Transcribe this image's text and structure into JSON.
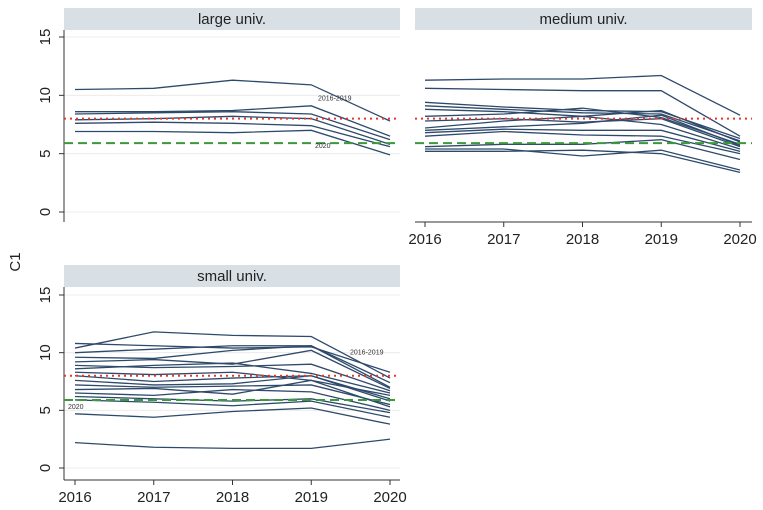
{
  "ylabel": "C1",
  "chart_data": [
    {
      "type": "line",
      "title": "large univ.",
      "color": "#2e4a6b",
      "x": [
        2016,
        2017,
        2018,
        2019,
        2020
      ],
      "xlim": [
        2016,
        2020
      ],
      "ylim": [
        0,
        15
      ],
      "yticks": [
        0,
        5,
        10,
        15
      ],
      "grid": true,
      "series": [
        {
          "values": [
            10.5,
            10.6,
            11.3,
            10.9,
            7.8
          ]
        },
        {
          "values": [
            8.6,
            8.6,
            8.7,
            9.1,
            6.5
          ]
        },
        {
          "values": [
            8.4,
            8.5,
            8.6,
            8.4,
            6.2
          ]
        },
        {
          "values": [
            7.9,
            8.0,
            8.2,
            8.0,
            5.8
          ]
        },
        {
          "values": [
            7.6,
            7.7,
            7.6,
            7.4,
            5.6
          ]
        },
        {
          "values": [
            6.9,
            6.9,
            6.8,
            7.0,
            4.9
          ]
        }
      ],
      "hlines": [
        {
          "value": 8,
          "color": "#e8372c",
          "style": "dotted",
          "label": "2016-2019"
        },
        {
          "value": 5.9,
          "color": "#3a9a3a",
          "style": "dashed",
          "label": "2020"
        }
      ]
    },
    {
      "type": "line",
      "title": "medium univ.",
      "color": "#2e4a6b",
      "x": [
        2016,
        2017,
        2018,
        2019,
        2020
      ],
      "xlim": [
        2016,
        2020
      ],
      "xticks": [
        2016,
        2017,
        2018,
        2019,
        2020
      ],
      "ylim": [
        0,
        15
      ],
      "grid": true,
      "series": [
        {
          "values": [
            11.3,
            11.4,
            11.4,
            11.7,
            8.3
          ]
        },
        {
          "values": [
            10.6,
            10.5,
            10.4,
            10.4,
            6.5
          ]
        },
        {
          "values": [
            9.4,
            9.0,
            8.7,
            8.6,
            6.3
          ]
        },
        {
          "values": [
            9.1,
            8.8,
            8.5,
            8.4,
            6.1
          ]
        },
        {
          "values": [
            8.8,
            8.6,
            8.2,
            8.7,
            6.0
          ]
        },
        {
          "values": [
            8.2,
            8.4,
            8.9,
            8.1,
            5.8
          ]
        },
        {
          "values": [
            7.8,
            8.0,
            7.7,
            8.0,
            5.6
          ]
        },
        {
          "values": [
            7.2,
            7.8,
            8.2,
            7.5,
            5.4
          ]
        },
        {
          "values": [
            7.0,
            7.3,
            7.6,
            8.3,
            5.7
          ]
        },
        {
          "values": [
            6.8,
            7.1,
            7.0,
            7.0,
            5.2
          ]
        },
        {
          "values": [
            6.5,
            6.9,
            6.6,
            6.5,
            5.0
          ]
        },
        {
          "values": [
            5.6,
            5.8,
            5.8,
            6.2,
            4.5
          ]
        },
        {
          "values": [
            5.4,
            5.4,
            4.8,
            5.3,
            3.6
          ]
        },
        {
          "values": [
            5.2,
            5.2,
            5.3,
            5.0,
            3.4
          ]
        }
      ],
      "hlines": [
        {
          "value": 8,
          "color": "#e8372c",
          "style": "dotted"
        },
        {
          "value": 5.9,
          "color": "#3a9a3a",
          "style": "dashed"
        }
      ]
    },
    {
      "type": "line",
      "title": "small univ.",
      "color": "#2e4a6b",
      "x": [
        2016,
        2017,
        2018,
        2019,
        2020
      ],
      "xlim": [
        2016,
        2020
      ],
      "xticks": [
        2016,
        2017,
        2018,
        2019,
        2020
      ],
      "ylim": [
        0,
        15
      ],
      "yticks": [
        0,
        5,
        10,
        15
      ],
      "grid": true,
      "series": [
        {
          "values": [
            10.8,
            10.6,
            10.4,
            10.5,
            8.3
          ]
        },
        {
          "values": [
            10.4,
            11.8,
            11.5,
            11.4,
            7.8
          ]
        },
        {
          "values": [
            10.0,
            10.3,
            10.6,
            10.6,
            7.4
          ]
        },
        {
          "values": [
            9.6,
            9.5,
            10.2,
            10.6,
            7.0
          ]
        },
        {
          "values": [
            9.2,
            9.4,
            9.0,
            10.2,
            6.9
          ]
        },
        {
          "values": [
            8.9,
            8.7,
            8.8,
            9.0,
            6.7
          ]
        },
        {
          "values": [
            8.6,
            8.9,
            9.1,
            8.2,
            6.5
          ]
        },
        {
          "values": [
            8.3,
            8.1,
            8.3,
            7.6,
            6.3
          ]
        },
        {
          "values": [
            8.0,
            7.5,
            7.8,
            8.0,
            6.0
          ]
        },
        {
          "values": [
            7.6,
            7.2,
            7.3,
            8.0,
            5.8
          ]
        },
        {
          "values": [
            7.2,
            7.0,
            7.1,
            7.2,
            5.5
          ]
        },
        {
          "values": [
            6.8,
            6.9,
            6.4,
            7.6,
            5.3
          ]
        },
        {
          "values": [
            6.5,
            6.3,
            6.8,
            6.6,
            5.0
          ]
        },
        {
          "values": [
            6.2,
            6.0,
            5.8,
            6.0,
            4.8
          ]
        },
        {
          "values": [
            5.9,
            5.7,
            5.4,
            5.8,
            4.4
          ]
        },
        {
          "values": [
            4.7,
            4.4,
            4.9,
            5.2,
            3.8
          ]
        },
        {
          "values": [
            2.2,
            1.8,
            1.7,
            1.7,
            2.5
          ]
        }
      ],
      "hlines": [
        {
          "value": 8,
          "color": "#e8372c",
          "style": "dotted",
          "label": "2016-2019"
        },
        {
          "value": 5.9,
          "color": "#3a9a3a",
          "style": "dashed",
          "label": "2020"
        }
      ]
    }
  ]
}
